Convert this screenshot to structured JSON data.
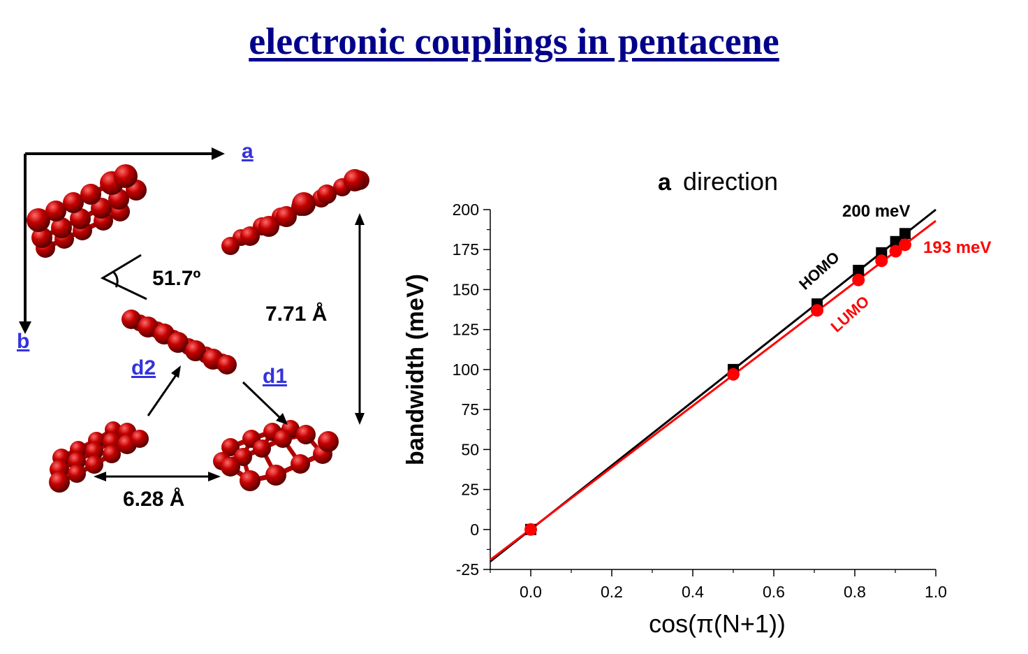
{
  "title": "electronic couplings in pentacene",
  "crystal": {
    "axis_a": "a",
    "axis_b": "b",
    "angle": "51.7º",
    "vertical_distance": "7.71 Å",
    "horizontal_distance": "6.28 Å",
    "d1": "d1",
    "d2": "d2",
    "atom_color": "#b00000",
    "label_color": "#3333dd"
  },
  "chart_data": {
    "type": "scatter",
    "title_prefix": "a",
    "title_suffix": "direction",
    "xlabel": "cos(π(N+1))",
    "ylabel": "bandwidth (meV)",
    "xlim": [
      -0.1,
      1.0
    ],
    "ylim": [
      -25,
      200
    ],
    "xticks": [
      "0.0",
      "0.2",
      "0.4",
      "0.6",
      "0.8",
      "1.0"
    ],
    "xtick_values": [
      0.0,
      0.2,
      0.4,
      0.6,
      0.8,
      1.0
    ],
    "yticks": [
      "-25",
      "0",
      "25",
      "50",
      "75",
      "100",
      "125",
      "150",
      "175",
      "200"
    ],
    "ytick_values": [
      -25,
      0,
      25,
      50,
      75,
      100,
      125,
      150,
      175,
      200
    ],
    "series": [
      {
        "name": "HOMO",
        "color": "#000000",
        "marker": "square",
        "x": [
          0.0,
          0.5,
          0.707,
          0.809,
          0.866,
          0.901,
          0.924
        ],
        "y": [
          0,
          100,
          141,
          162,
          173,
          180,
          185
        ],
        "fit": {
          "x": [
            -0.1,
            1.0
          ],
          "y": [
            -20,
            200
          ]
        },
        "annotation": "200 meV"
      },
      {
        "name": "LUMO",
        "color": "#ff0000",
        "marker": "circle",
        "x": [
          0.0,
          0.5,
          0.707,
          0.809,
          0.866,
          0.901,
          0.924
        ],
        "y": [
          0,
          97,
          137,
          156,
          168,
          174,
          178
        ],
        "fit": {
          "x": [
            -0.1,
            1.0
          ],
          "y": [
            -19,
            193
          ]
        },
        "annotation": "193 meV"
      }
    ]
  }
}
